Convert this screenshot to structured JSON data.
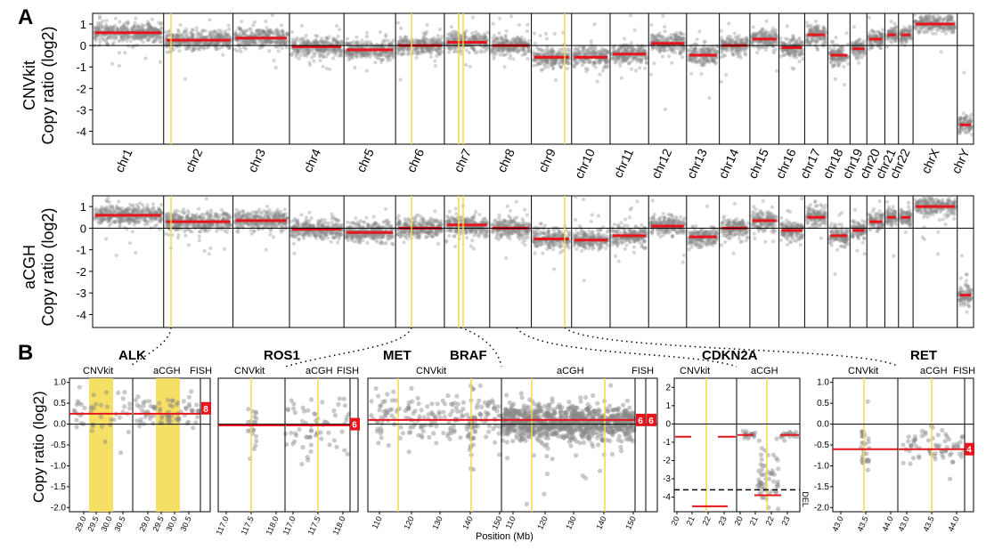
{
  "panel_labels": {
    "a": "A",
    "b": "B"
  },
  "panel_a": {
    "top_ylabel_line1": "CNVkit",
    "top_ylabel_line2": "Copy ratio (log2)",
    "bottom_ylabel_line1": "aCGH",
    "bottom_ylabel_line2": "Copy ratio (log2)"
  },
  "panel_b": {
    "ylabel": "Copy ratio (log2)",
    "xlabel": "Position (Mb)",
    "genes": [
      "ALK",
      "ROS1",
      "MET",
      "BRAF",
      "CDKN2A",
      "RET"
    ],
    "sub_cnvkit": "CNVkit",
    "sub_acgh": "aCGH",
    "sub_fish": "FISH",
    "del_label": "DEL"
  },
  "chart_data": [
    {
      "type": "scatter",
      "title": "",
      "ylabel": "CNVkit Copy ratio (log2)",
      "ylim": [
        -4.6,
        1.5
      ],
      "yticks": [
        1,
        0,
        -1,
        -2,
        -3,
        -4
      ],
      "categories": [
        "chr1",
        "chr2",
        "chr3",
        "chr4",
        "chr5",
        "chr6",
        "chr7",
        "chr8",
        "chr9",
        "chr10",
        "chr11",
        "chr12",
        "chr13",
        "chr14",
        "chr15",
        "chr16",
        "chr17",
        "chr18",
        "chr19",
        "chr20",
        "chr21",
        "chr22",
        "chrX",
        "chrY"
      ],
      "series": [
        {
          "name": "segment means",
          "values": [
            0.6,
            0.25,
            0.35,
            -0.05,
            -0.2,
            0.0,
            0.15,
            0.0,
            -0.55,
            -0.55,
            -0.4,
            0.1,
            -0.45,
            0.0,
            0.3,
            -0.1,
            0.5,
            -0.45,
            -0.15,
            0.3,
            0.5,
            0.5,
            1.0,
            -3.7
          ]
        }
      ],
      "grid": false
    },
    {
      "type": "scatter",
      "title": "",
      "ylabel": "aCGH Copy ratio (log2)",
      "ylim": [
        -4.6,
        1.5
      ],
      "yticks": [
        1,
        0,
        -1,
        -2,
        -3,
        -4
      ],
      "categories": [
        "chr1",
        "chr2",
        "chr3",
        "chr4",
        "chr5",
        "chr6",
        "chr7",
        "chr8",
        "chr9",
        "chr10",
        "chr11",
        "chr12",
        "chr13",
        "chr14",
        "chr15",
        "chr16",
        "chr17",
        "chr18",
        "chr19",
        "chr20",
        "chr21",
        "chr22",
        "chrX",
        "chrY"
      ],
      "series": [
        {
          "name": "segment means",
          "values": [
            0.6,
            0.3,
            0.35,
            -0.05,
            -0.2,
            0.0,
            0.15,
            0.0,
            -0.5,
            -0.55,
            -0.35,
            0.1,
            -0.4,
            0.0,
            0.35,
            -0.1,
            0.5,
            -0.35,
            -0.1,
            0.3,
            0.5,
            0.5,
            1.0,
            -3.1
          ]
        }
      ],
      "grid": false
    },
    {
      "type": "scatter",
      "title": "ALK",
      "ylim": [
        -2.1,
        1.1
      ],
      "yticks": [
        1.0,
        0.5,
        0.0,
        -0.5,
        -1.0,
        -1.5,
        -2.0
      ],
      "xticks": [
        29.0,
        29.5,
        30.0,
        30.5
      ],
      "series": [
        {
          "name": "CNVkit",
          "segment": 0.25
        },
        {
          "name": "aCGH",
          "segment": 0.25
        },
        {
          "name": "FISH",
          "value": "8"
        }
      ]
    },
    {
      "type": "scatter",
      "title": "ROS1",
      "xticks": [
        117.0,
        117.5,
        118.0
      ],
      "series": [
        {
          "name": "CNVkit",
          "segment": -0.03
        },
        {
          "name": "aCGH",
          "segment": -0.03
        },
        {
          "name": "FISH",
          "value": "6"
        }
      ]
    },
    {
      "type": "scatter",
      "title": "MET / BRAF",
      "xticks": [
        110,
        120,
        130,
        140,
        150
      ],
      "series": [
        {
          "name": "CNVkit",
          "segment": 0.1
        },
        {
          "name": "aCGH",
          "segment": 0.1
        },
        {
          "name": "FISH",
          "values": [
            "6",
            "6"
          ]
        }
      ]
    },
    {
      "type": "scatter",
      "title": "CDKN2A",
      "ylim": [
        -4.8,
        2.5
      ],
      "yticks": [
        2,
        1,
        0,
        -1,
        -2,
        -3,
        -4
      ],
      "xticks": [
        20,
        21,
        22,
        23
      ],
      "series": [
        {
          "name": "CNVkit",
          "segment": -0.7,
          "deletion": -4.5
        },
        {
          "name": "aCGH",
          "segment": -0.6,
          "deletion": -3.9
        },
        {
          "name": "DEL threshold",
          "value": -3.6
        }
      ]
    },
    {
      "type": "scatter",
      "title": "RET",
      "ylim": [
        -2.1,
        1.1
      ],
      "yticks": [
        1.0,
        0.5,
        0.0,
        -0.5,
        -1.0,
        -1.5,
        -2.0
      ],
      "xticks": [
        43.0,
        43.5,
        44.0
      ],
      "series": [
        {
          "name": "CNVkit",
          "segment": -0.6
        },
        {
          "name": "aCGH",
          "segment": -0.6
        },
        {
          "name": "FISH",
          "value": "4"
        }
      ]
    }
  ]
}
